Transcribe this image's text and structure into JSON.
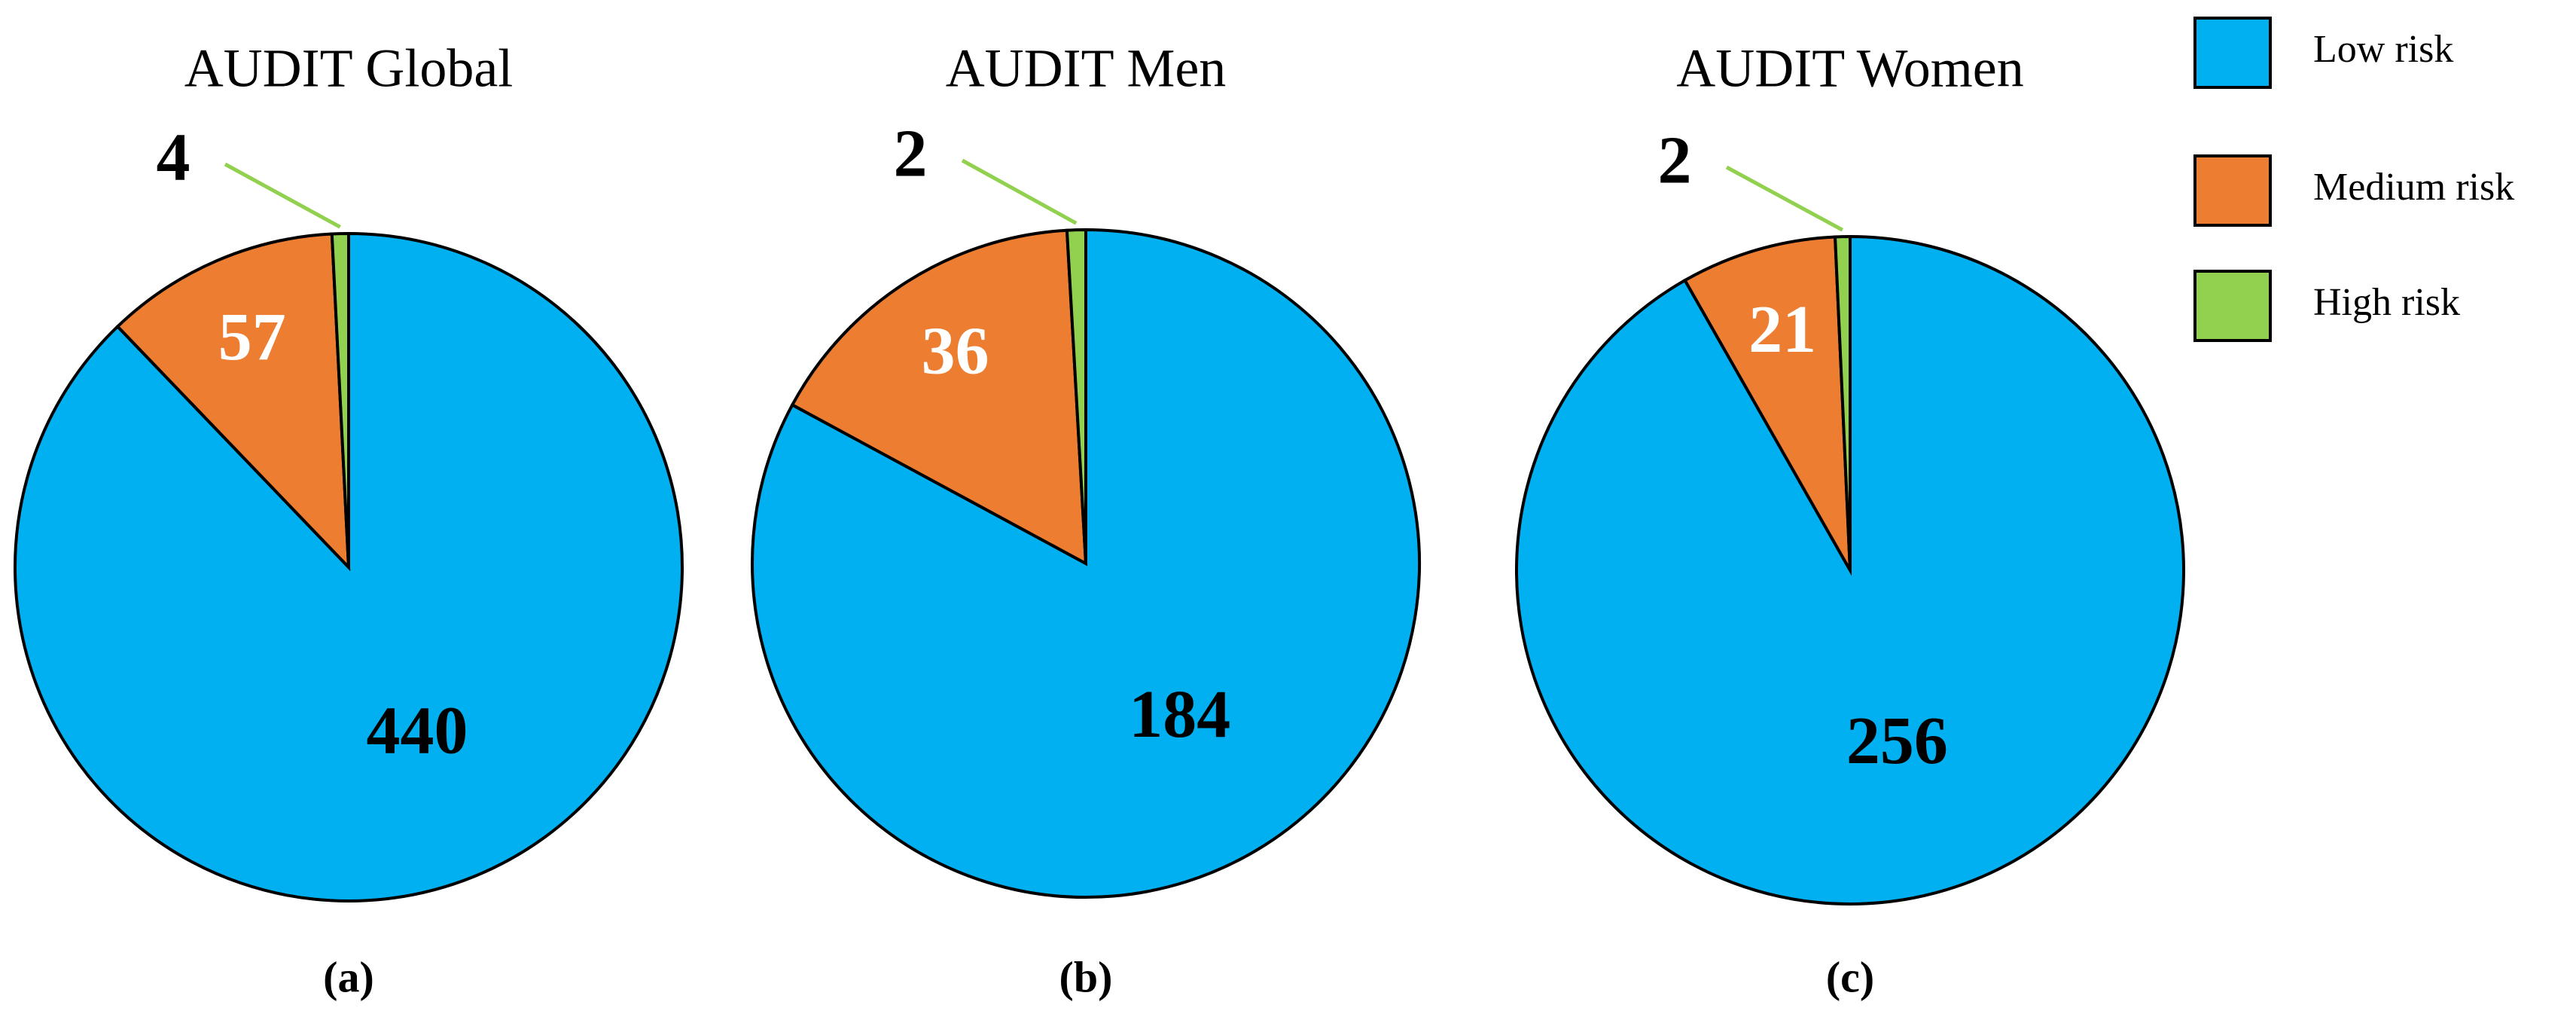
{
  "chart_data": [
    {
      "type": "pie",
      "title": "AUDIT Global",
      "caption": "(a)",
      "categories": [
        "Low risk",
        "Medium risk",
        "High risk"
      ],
      "values": [
        440,
        57,
        4
      ],
      "colors": [
        "#00b0f0",
        "#ed7d31",
        "#92d050"
      ]
    },
    {
      "type": "pie",
      "title": "AUDIT Men",
      "caption": "(b)",
      "values": [
        184,
        36,
        2
      ],
      "colors": [
        "#00b0f0",
        "#ed7d31",
        "#92d050"
      ]
    },
    {
      "type": "pie",
      "title": "AUDIT Women",
      "caption": "(c)",
      "values": [
        256,
        21,
        2
      ],
      "colors": [
        "#00b0f0",
        "#ed7d31",
        "#92d050"
      ]
    }
  ]
}
